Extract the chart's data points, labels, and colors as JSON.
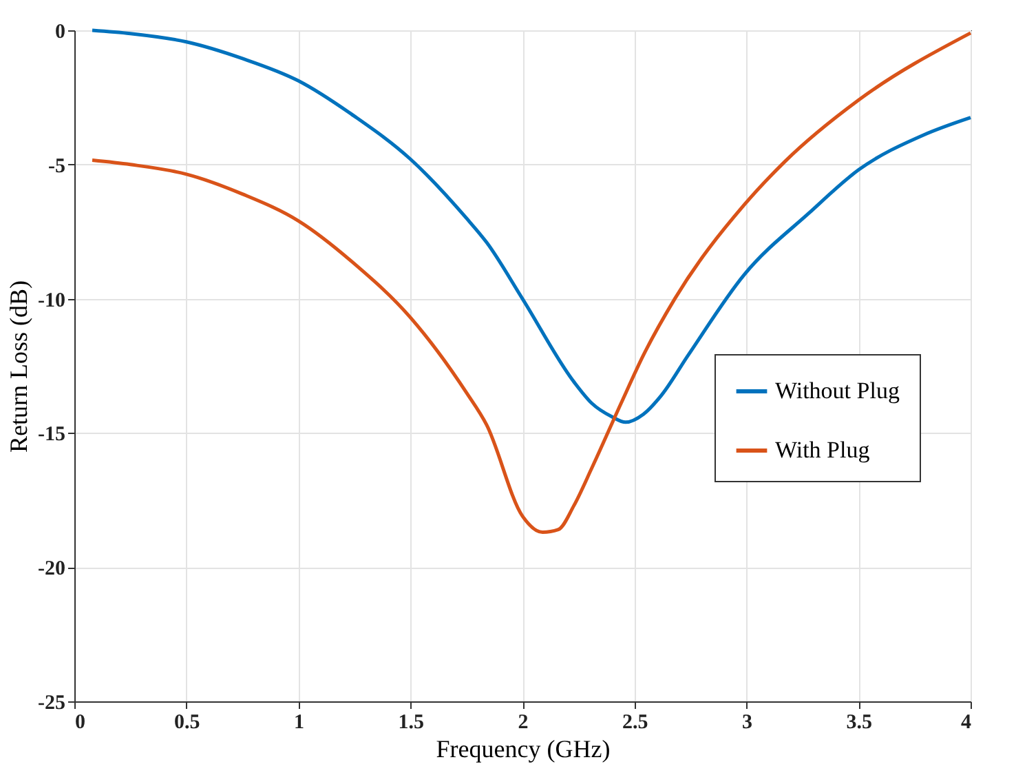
{
  "chart_data": {
    "type": "line",
    "xlabel": "Frequency (GHz)",
    "ylabel": "Return Loss (dB)",
    "xlim": [
      0,
      4
    ],
    "xticks": [
      0,
      0.5,
      1,
      1.5,
      2,
      2.5,
      3,
      3.5,
      4
    ],
    "ylim": [
      -25,
      0
    ],
    "yticks": [
      -25,
      -20,
      -15,
      -10,
      -5,
      0
    ],
    "grid": true,
    "legend": "right",
    "line_style": "solid",
    "marker": "none",
    "series": [
      {
        "name": "Without Plug",
        "color": "#0072bd",
        "x": [
          0.08,
          0.25,
          0.5,
          0.75,
          1,
          1.25,
          1.5,
          1.75,
          1.84,
          2.0,
          2.23,
          2.31,
          2.4,
          2.46,
          2.54,
          2.62,
          2.74,
          2.99,
          3.28,
          3.5,
          3.79,
          4.0
        ],
        "values": [
          0,
          -0.12,
          -0.43,
          -1.05,
          -1.88,
          -3.2,
          -4.8,
          -7.0,
          -7.9,
          -10.0,
          -13.1,
          -13.9,
          -14.4,
          -14.6,
          -14.3,
          -13.6,
          -12.1,
          -9.1,
          -6.8,
          -5.2,
          -3.9,
          -3.25
        ]
      },
      {
        "name": "With Plug",
        "color": "#d95319",
        "x": [
          0.08,
          0.25,
          0.5,
          0.75,
          1,
          1.25,
          1.5,
          1.75,
          1.84,
          2.0,
          2.09,
          2.16,
          2.23,
          2.31,
          2.44,
          2.54,
          2.68,
          2.99,
          3.17,
          3.5,
          4.0
        ],
        "values": [
          -4.84,
          -5.0,
          -5.36,
          -6.1,
          -7.1,
          -8.7,
          -10.7,
          -13.5,
          -14.7,
          -18.1,
          -18.7,
          -18.6,
          -17.7,
          -16.3,
          -13.9,
          -12.1,
          -10.0,
          -6.5,
          -4.9,
          -2.6,
          -0.1
        ]
      }
    ]
  }
}
